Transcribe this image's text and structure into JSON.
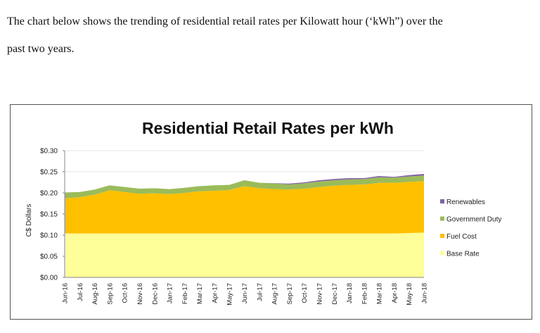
{
  "document": {
    "intro_line1": "The chart below shows the trending of residential retail rates per Kilowatt hour (‘kWh”) over the",
    "intro_line2": "past two years."
  },
  "chart_data": {
    "type": "area",
    "stacked": true,
    "title": "Residential Retail Rates per kWh",
    "xlabel": "",
    "ylabel": "C$ Dollars",
    "ylim": [
      0,
      0.3
    ],
    "yticks": [
      "$0.00",
      "$0.05",
      "$0.10",
      "$0.15",
      "$0.20",
      "$0.25",
      "$0.30"
    ],
    "ytick_values": [
      0,
      0.05,
      0.1,
      0.15,
      0.2,
      0.25,
      0.3
    ],
    "grid": true,
    "legend_position": "right",
    "categories": [
      "Jun-16",
      "Jul-16",
      "Aug-16",
      "Sep-16",
      "Oct-16",
      "Nov-16",
      "Dec-16",
      "Jan-17",
      "Feb-17",
      "Mar-17",
      "Apr-17",
      "May-17",
      "Jun-17",
      "Jul-17",
      "Aug-17",
      "Sep-17",
      "Oct-17",
      "Nov-17",
      "Dec-17",
      "Jan-18",
      "Feb-18",
      "Mar-18",
      "Apr-18",
      "May-18",
      "Jun-18"
    ],
    "series": [
      {
        "name": "Base Rate",
        "color": "#ffff99",
        "values": [
          0.104,
          0.104,
          0.104,
          0.104,
          0.104,
          0.104,
          0.104,
          0.104,
          0.104,
          0.104,
          0.104,
          0.104,
          0.104,
          0.104,
          0.104,
          0.104,
          0.104,
          0.104,
          0.104,
          0.104,
          0.104,
          0.104,
          0.104,
          0.105,
          0.106
        ]
      },
      {
        "name": "Fuel Cost",
        "color": "#ffc000",
        "values": [
          0.083,
          0.086,
          0.092,
          0.102,
          0.098,
          0.094,
          0.095,
          0.093,
          0.096,
          0.1,
          0.101,
          0.103,
          0.112,
          0.107,
          0.105,
          0.104,
          0.106,
          0.11,
          0.113,
          0.115,
          0.116,
          0.12,
          0.12,
          0.121,
          0.122
        ]
      },
      {
        "name": "Government Duty",
        "color": "#9bbb59",
        "values": [
          0.014,
          0.012,
          0.012,
          0.012,
          0.012,
          0.012,
          0.012,
          0.012,
          0.012,
          0.012,
          0.013,
          0.012,
          0.014,
          0.013,
          0.013,
          0.012,
          0.013,
          0.013,
          0.013,
          0.013,
          0.013,
          0.013,
          0.012,
          0.013,
          0.013
        ]
      },
      {
        "name": "Renewables",
        "color": "#8064a2",
        "values": [
          0,
          0,
          0,
          0,
          0,
          0,
          0,
          0,
          0,
          0,
          0,
          0,
          0,
          0,
          0.001,
          0.002,
          0.002,
          0.003,
          0.003,
          0.003,
          0.002,
          0.003,
          0.002,
          0.003,
          0.004
        ]
      }
    ],
    "legend_order": [
      "Renewables",
      "Government Duty",
      "Fuel Cost",
      "Base Rate"
    ]
  }
}
